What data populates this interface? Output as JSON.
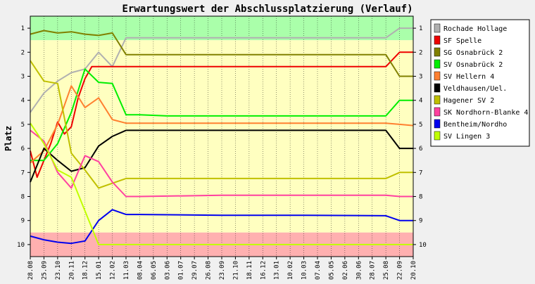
{
  "chart_data": {
    "type": "line",
    "title": "Erwartungswert der Abschlussplatzierung (Verlauf)",
    "ylabel": "Platz",
    "xlabel": "",
    "ylim": [
      10.5,
      0.5
    ],
    "y_inverted": true,
    "y_ticks": [
      1,
      2,
      3,
      4,
      5,
      6,
      7,
      8,
      9,
      10
    ],
    "x_dates": [
      "28.08",
      "25.09",
      "23.10",
      "20.11",
      "18.12",
      "15.01",
      "12.02",
      "11.03",
      "08.04",
      "06.05",
      "03.06",
      "01.07",
      "29.07",
      "26.08",
      "23.09",
      "21.10",
      "18.11",
      "16.12",
      "13.01",
      "10.02",
      "10.03",
      "07.04",
      "05.05",
      "02.06",
      "30.06",
      "28.07",
      "25.08",
      "22.09",
      "20.10"
    ],
    "grid": "vertical",
    "legend_position": "right",
    "bands": [
      {
        "from": 0.5,
        "to": 1.5,
        "color": "#aaffaa"
      },
      {
        "from": 1.5,
        "to": 9.5,
        "color": "#ffffc0"
      },
      {
        "from": 9.5,
        "to": 10.5,
        "color": "#ffb0b0"
      }
    ],
    "series": [
      {
        "name": "Rochade Hollage",
        "color": "#b0b0b0",
        "values": [
          [
            0,
            4.5
          ],
          [
            1,
            3.7
          ],
          [
            2,
            3.2
          ],
          [
            3,
            2.85
          ],
          [
            4,
            2.7
          ],
          [
            5,
            2.0
          ],
          [
            6,
            2.6
          ],
          [
            7,
            1.4
          ],
          [
            8,
            1.4
          ],
          [
            10,
            1.4
          ],
          [
            14,
            1.4
          ],
          [
            20,
            1.4
          ],
          [
            26,
            1.4
          ],
          [
            27,
            1.0
          ],
          [
            28,
            1.0
          ]
        ]
      },
      {
        "name": "SF Spelle",
        "color": "#ee0000",
        "values": [
          [
            0,
            6.1
          ],
          [
            0.5,
            7.2
          ],
          [
            1,
            6.5
          ],
          [
            1.5,
            5.8
          ],
          [
            2,
            4.9
          ],
          [
            2.5,
            5.4
          ],
          [
            3,
            5.1
          ],
          [
            3.5,
            3.9
          ],
          [
            4,
            3.1
          ],
          [
            4.5,
            2.6
          ],
          [
            7,
            2.6
          ],
          [
            14,
            2.6
          ],
          [
            20,
            2.6
          ],
          [
            26,
            2.6
          ],
          [
            27,
            2.0
          ],
          [
            28,
            2.0
          ]
        ]
      },
      {
        "name": "SG Osnabrück 2",
        "color": "#808000",
        "values": [
          [
            0,
            1.25
          ],
          [
            1,
            1.1
          ],
          [
            2,
            1.2
          ],
          [
            3,
            1.15
          ],
          [
            4,
            1.25
          ],
          [
            5,
            1.3
          ],
          [
            6,
            1.2
          ],
          [
            7,
            2.1
          ],
          [
            8,
            2.1
          ],
          [
            14,
            2.1
          ],
          [
            20,
            2.1
          ],
          [
            26,
            2.1
          ],
          [
            27,
            3.0
          ],
          [
            28,
            3.0
          ]
        ]
      },
      {
        "name": "SV Osnabrück 2",
        "color": "#00ee00",
        "values": [
          [
            0,
            6.5
          ],
          [
            1,
            6.5
          ],
          [
            2,
            5.8
          ],
          [
            3,
            4.5
          ],
          [
            4,
            2.7
          ],
          [
            5,
            3.25
          ],
          [
            6,
            3.3
          ],
          [
            7,
            4.6
          ],
          [
            8,
            4.6
          ],
          [
            10,
            4.65
          ],
          [
            14,
            4.65
          ],
          [
            20,
            4.65
          ],
          [
            26,
            4.65
          ],
          [
            27,
            4.0
          ],
          [
            28,
            4.0
          ]
        ]
      },
      {
        "name": "SV Hellern 4",
        "color": "#ff8030",
        "values": [
          [
            0,
            6.6
          ],
          [
            1,
            6.1
          ],
          [
            2,
            5.0
          ],
          [
            3,
            3.4
          ],
          [
            4,
            4.3
          ],
          [
            5,
            3.9
          ],
          [
            6,
            4.8
          ],
          [
            7,
            4.95
          ],
          [
            8,
            4.95
          ],
          [
            14,
            4.95
          ],
          [
            20,
            4.95
          ],
          [
            26,
            4.95
          ],
          [
            27,
            5.0
          ],
          [
            28,
            5.05
          ]
        ]
      },
      {
        "name": "Veldhausen/Uel.",
        "color": "#000000",
        "values": [
          [
            0,
            7.4
          ],
          [
            1,
            6.0
          ],
          [
            2,
            6.5
          ],
          [
            3,
            6.95
          ],
          [
            4,
            6.8
          ],
          [
            5,
            5.9
          ],
          [
            6,
            5.5
          ],
          [
            7,
            5.25
          ],
          [
            8,
            5.25
          ],
          [
            14,
            5.25
          ],
          [
            20,
            5.25
          ],
          [
            26,
            5.25
          ],
          [
            27,
            6.0
          ],
          [
            28,
            6.0
          ]
        ]
      },
      {
        "name": "Hagener SV 2",
        "color": "#c0c000",
        "values": [
          [
            0,
            2.35
          ],
          [
            1,
            3.2
          ],
          [
            2,
            3.3
          ],
          [
            3,
            6.2
          ],
          [
            4,
            6.9
          ],
          [
            5,
            7.65
          ],
          [
            6,
            7.45
          ],
          [
            7,
            7.25
          ],
          [
            8,
            7.25
          ],
          [
            14,
            7.25
          ],
          [
            20,
            7.25
          ],
          [
            26,
            7.25
          ],
          [
            27,
            7.0
          ],
          [
            28,
            7.0
          ]
        ]
      },
      {
        "name": "SK Nordhorn-Blanke 4",
        "color": "#ff40a0",
        "values": [
          [
            0,
            5.25
          ],
          [
            1,
            5.7
          ],
          [
            2,
            7.0
          ],
          [
            3,
            7.65
          ],
          [
            4,
            6.3
          ],
          [
            5,
            6.55
          ],
          [
            6,
            7.4
          ],
          [
            7,
            8.0
          ],
          [
            8,
            8.0
          ],
          [
            14,
            7.95
          ],
          [
            20,
            7.95
          ],
          [
            26,
            7.95
          ],
          [
            27,
            8.0
          ],
          [
            28,
            8.0
          ]
        ]
      },
      {
        "name": "Bentheim/Nordho",
        "color": "#0000ee",
        "values": [
          [
            0,
            9.65
          ],
          [
            1,
            9.8
          ],
          [
            2,
            9.9
          ],
          [
            3,
            9.95
          ],
          [
            4,
            9.85
          ],
          [
            5,
            9.0
          ],
          [
            6,
            8.55
          ],
          [
            7,
            8.75
          ],
          [
            8,
            8.75
          ],
          [
            14,
            8.78
          ],
          [
            20,
            8.78
          ],
          [
            26,
            8.8
          ],
          [
            27,
            9.0
          ],
          [
            28,
            9.0
          ]
        ]
      },
      {
        "name": "SV Lingen 3",
        "color": "#c0ff00",
        "values": [
          [
            0,
            4.95
          ],
          [
            1,
            5.8
          ],
          [
            2,
            6.9
          ],
          [
            3,
            7.2
          ],
          [
            4,
            8.6
          ],
          [
            5,
            10.0
          ],
          [
            6,
            10.0
          ],
          [
            7,
            10.0
          ],
          [
            14,
            10.0
          ],
          [
            20,
            10.0
          ],
          [
            26,
            10.0
          ],
          [
            28,
            10.0
          ]
        ]
      }
    ]
  }
}
